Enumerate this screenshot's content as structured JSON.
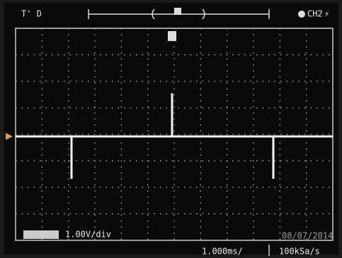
{
  "header": {
    "trigger_status": "T' D",
    "channel": "CH2"
  },
  "screen": {
    "volts_per_div": "1.00V/div",
    "date": "08/07/2014"
  },
  "footer": {
    "timebase": "1.000ms/",
    "sample_rate": "100kSa/s"
  }
}
